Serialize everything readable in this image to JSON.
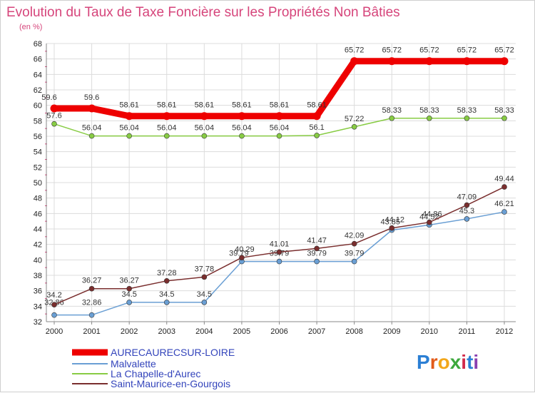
{
  "chart_data": {
    "type": "line",
    "title": "Evolution du Taux de Taxe Foncière sur les Propriétés Non Bâties",
    "subtitle": "(en %)",
    "xlabel": "",
    "ylabel": "",
    "x": [
      "2000",
      "2001",
      "2002",
      "2003",
      "2004",
      "2005",
      "2006",
      "2007",
      "2008",
      "2009",
      "2010",
      "2011",
      "2012"
    ],
    "ylim": [
      32,
      68
    ],
    "yticks": [
      32,
      34,
      36,
      38,
      40,
      42,
      44,
      46,
      48,
      50,
      52,
      54,
      56,
      58,
      60,
      62,
      64,
      66,
      68
    ],
    "grid": true,
    "legend_position": "bottom-left",
    "series": [
      {
        "name": "AURECAURECSUR-LOIRE",
        "color": "#ee0000",
        "values": [
          59.6,
          59.6,
          58.61,
          58.61,
          58.61,
          58.61,
          58.61,
          58.61,
          65.72,
          65.72,
          65.72,
          65.72,
          65.72
        ],
        "labels": [
          "59.6",
          "59.6",
          "58.61",
          "58.61",
          "58.61",
          "58.61",
          "58.61",
          "58.61",
          "65.72",
          "65.72",
          "65.72",
          "65.72",
          "65.72"
        ]
      },
      {
        "name": "Malvalette",
        "color": "#6a9fd4",
        "values": [
          32.86,
          32.86,
          34.5,
          34.5,
          34.5,
          39.79,
          39.79,
          39.79,
          39.79,
          43.85,
          44.52,
          45.3,
          46.21
        ],
        "labels": [
          "32.86",
          "32.86",
          "34.5",
          "34.5",
          "34.5",
          "39.79",
          "39.79",
          "39.79",
          "39.79",
          "43.85",
          "44.52",
          "45.3",
          "46.21"
        ]
      },
      {
        "name": "La Chapelle-d'Aurec",
        "color": "#88cc44",
        "values": [
          57.6,
          56.04,
          56.04,
          56.04,
          56.04,
          56.04,
          56.04,
          56.1,
          57.22,
          58.33,
          58.33,
          58.33,
          58.33
        ],
        "labels": [
          "57.6",
          "56.04",
          "56.04",
          "56.04",
          "56.04",
          "56.04",
          "56.04",
          "56.1",
          "57.22",
          "58.33",
          "58.33",
          "58.33",
          "58.33"
        ]
      },
      {
        "name": "Saint-Maurice-en-Gourgois",
        "color": "#7a2e2e",
        "values": [
          34.2,
          36.27,
          36.27,
          37.28,
          37.78,
          40.29,
          41.01,
          41.47,
          42.09,
          44.12,
          44.86,
          47.09,
          49.44
        ],
        "labels": [
          "34.2",
          "36.27",
          "36.27",
          "37.28",
          "37.78",
          "40.29",
          "41.01",
          "41.47",
          "42.09",
          "44.12",
          "44.86",
          "47.09",
          "49.44"
        ]
      }
    ]
  },
  "logo": {
    "text": "Proxiti",
    "letters": [
      "P",
      "r",
      "o",
      "x",
      "i",
      "t",
      "i"
    ],
    "letter_colors": [
      "#2b7fd4",
      "#e25b1a",
      "#f2a71b",
      "#3da83d",
      "#d12a4a",
      "#2b7fd4",
      "#8a3fb0"
    ]
  }
}
